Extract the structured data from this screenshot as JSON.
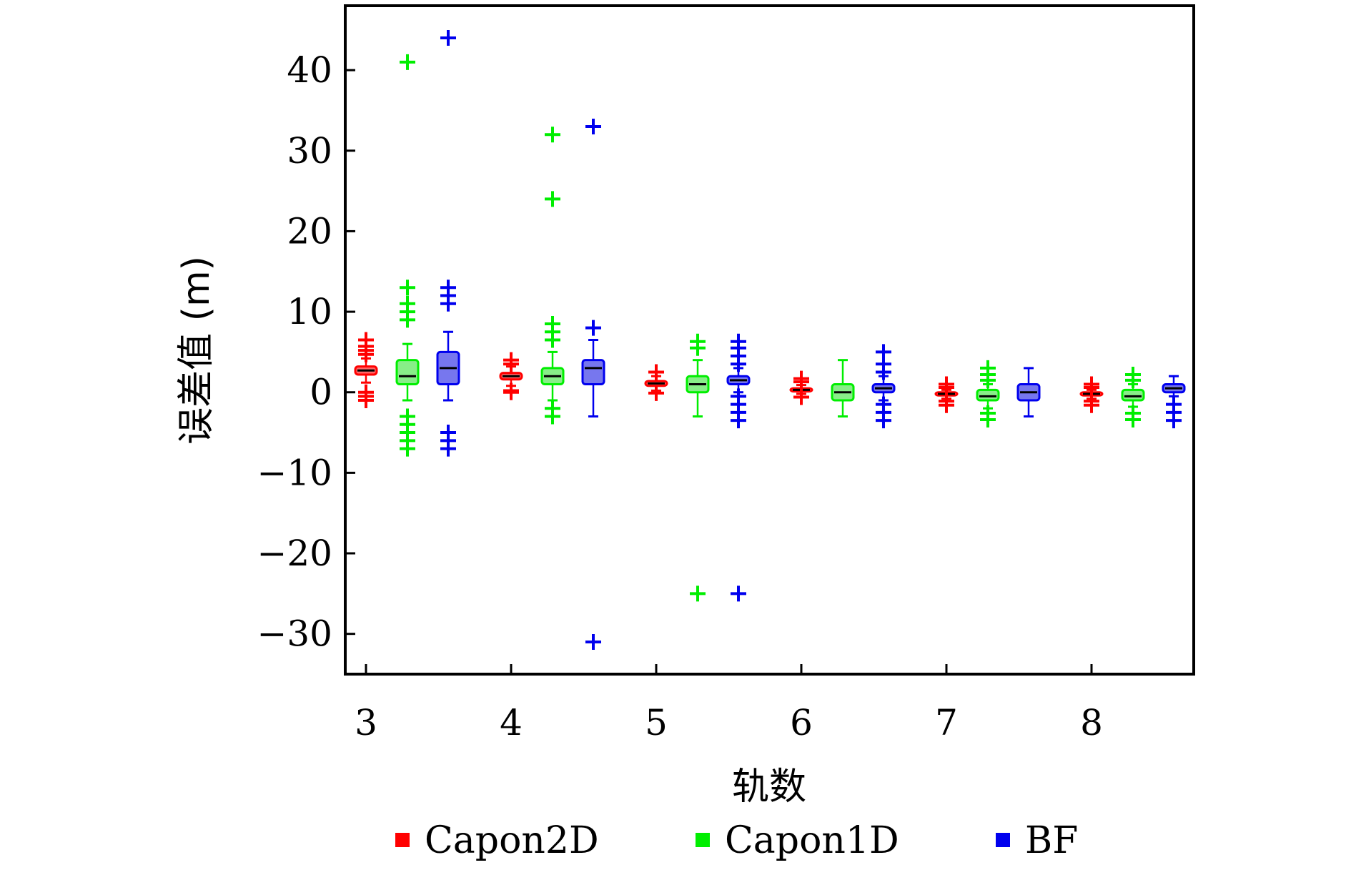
{
  "chart_data": {
    "type": "box",
    "xlabel": "轨数",
    "ylabel": "误差值 (m)",
    "ylim": [
      -35,
      48
    ],
    "xticks": [
      3,
      4,
      5,
      6,
      7,
      8
    ],
    "yticks": [
      -30,
      -20,
      -10,
      0,
      10,
      20,
      30,
      40
    ],
    "ytick_labels": [
      "−30",
      "−20",
      "−10",
      "0",
      "10",
      "20",
      "30",
      "40"
    ],
    "legend_position": "bottom",
    "grid": false,
    "series": [
      {
        "name": "Capon2D",
        "color": "#ff0000",
        "fill": "#ff6666",
        "boxes": [
          {
            "track": 3,
            "q1": 2.2,
            "median": 2.7,
            "q3": 3.2,
            "whisker_low": 1.2,
            "whisker_high": 4.2,
            "outliers": [
              -1.0,
              -0.5,
              0.0,
              4.7,
              5.2,
              5.7,
              6.5
            ]
          },
          {
            "track": 4,
            "q1": 1.6,
            "median": 2.0,
            "q3": 2.4,
            "whisker_low": 0.8,
            "whisker_high": 3.2,
            "outliers": [
              0.0,
              0.2,
              3.5,
              4.0
            ]
          },
          {
            "track": 5,
            "q1": 0.8,
            "median": 1.1,
            "q3": 1.4,
            "whisker_low": 0.2,
            "whisker_high": 2.0,
            "outliers": [
              -0.1,
              2.5
            ]
          },
          {
            "track": 6,
            "q1": 0.1,
            "median": 0.3,
            "q3": 0.5,
            "whisker_low": -0.2,
            "whisker_high": 0.9,
            "outliers": [
              -0.6,
              1.3,
              1.7
            ]
          },
          {
            "track": 7,
            "q1": -0.4,
            "median": -0.2,
            "q3": 0.0,
            "whisker_low": -0.8,
            "whisker_high": 0.3,
            "outliers": [
              -1.6,
              -1.1,
              0.6,
              1.0
            ]
          },
          {
            "track": 8,
            "q1": -0.4,
            "median": -0.2,
            "q3": 0.0,
            "whisker_low": -0.8,
            "whisker_high": 0.3,
            "outliers": [
              -1.6,
              -1.1,
              0.6,
              1.0
            ]
          }
        ]
      },
      {
        "name": "Capon1D",
        "color": "#00ee00",
        "fill": "#88ee88",
        "boxes": [
          {
            "track": 3,
            "q1": 1.0,
            "median": 2.0,
            "q3": 4.0,
            "whisker_low": -1.0,
            "whisker_high": 6.0,
            "outliers": [
              -7.0,
              -6.0,
              -5.0,
              -4.0,
              -3.0,
              9.0,
              10.0,
              11.0,
              13.0,
              41.0
            ]
          },
          {
            "track": 4,
            "q1": 1.0,
            "median": 2.0,
            "q3": 3.0,
            "whisker_low": -1.0,
            "whisker_high": 5.0,
            "outliers": [
              -3.0,
              -2.0,
              6.5,
              7.5,
              8.5,
              24.0,
              32.0
            ]
          },
          {
            "track": 5,
            "q1": 0.0,
            "median": 1.0,
            "q3": 2.0,
            "whisker_low": -3.0,
            "whisker_high": 4.0,
            "outliers": [
              -25.0,
              5.5,
              6.3
            ]
          },
          {
            "track": 6,
            "q1": -1.0,
            "median": 0.0,
            "q3": 1.0,
            "whisker_low": -3.0,
            "whisker_high": 4.0,
            "outliers": []
          },
          {
            "track": 7,
            "q1": -1.0,
            "median": -0.5,
            "q3": 0.3,
            "whisker_low": -2.0,
            "whisker_high": 1.0,
            "outliers": [
              -3.4,
              -2.6,
              1.5,
              2.2,
              3.0
            ]
          },
          {
            "track": 8,
            "q1": -1.0,
            "median": -0.5,
            "q3": 0.3,
            "whisker_low": -1.8,
            "whisker_high": 1.0,
            "outliers": [
              -3.4,
              -2.6,
              1.5,
              2.2
            ]
          }
        ]
      },
      {
        "name": "BF",
        "color": "#0000ee",
        "fill": "#7777ee",
        "boxes": [
          {
            "track": 3,
            "q1": 1.0,
            "median": 3.0,
            "q3": 5.0,
            "whisker_low": -1.0,
            "whisker_high": 7.5,
            "outliers": [
              -7.0,
              -6.0,
              -5.0,
              11.0,
              12.0,
              13.0,
              44.0
            ]
          },
          {
            "track": 4,
            "q1": 1.0,
            "median": 3.0,
            "q3": 4.0,
            "whisker_low": -3.0,
            "whisker_high": 6.5,
            "outliers": [
              -31.0,
              8.0,
              33.0
            ]
          },
          {
            "track": 5,
            "q1": 1.0,
            "median": 1.5,
            "q3": 2.0,
            "whisker_low": 0.0,
            "whisker_high": 3.0,
            "outliers": [
              -25.0,
              -3.5,
              -2.5,
              -1.5,
              -0.5,
              3.5,
              4.5,
              5.5,
              6.3
            ]
          },
          {
            "track": 6,
            "q1": 0.0,
            "median": 0.5,
            "q3": 1.0,
            "whisker_low": -1.0,
            "whisker_high": 2.0,
            "outliers": [
              -3.5,
              -2.5,
              -1.5,
              2.5,
              3.5,
              5.0
            ]
          },
          {
            "track": 7,
            "q1": -1.0,
            "median": 0.0,
            "q3": 1.0,
            "whisker_low": -3.0,
            "whisker_high": 3.0,
            "outliers": []
          },
          {
            "track": 8,
            "q1": 0.0,
            "median": 0.5,
            "q3": 1.0,
            "whisker_low": -0.5,
            "whisker_high": 2.0,
            "outliers": [
              -3.5,
              -2.5,
              -1.5
            ]
          }
        ]
      }
    ]
  }
}
